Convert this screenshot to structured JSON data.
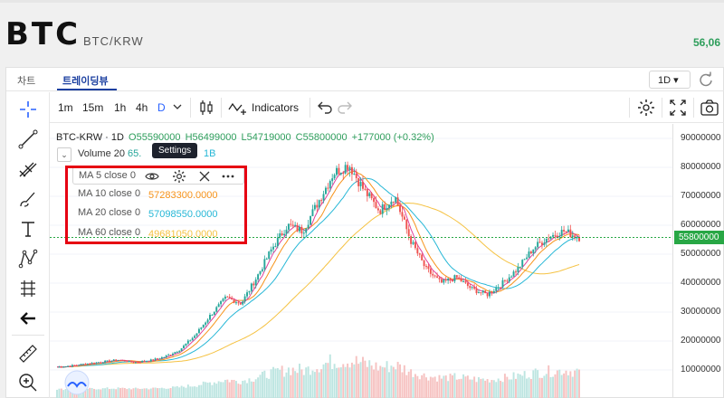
{
  "header": {
    "coin": "BTC",
    "pair": "BTC/KRW",
    "price_partial": "56,06"
  },
  "tabs": [
    {
      "label": "차트"
    },
    {
      "label": "트레이딩뷰"
    }
  ],
  "interval_select": "1D ▾",
  "toolbar": {
    "timeframes": [
      "1m",
      "15m",
      "1h",
      "4h",
      "D"
    ],
    "indicators_label": "Indicators"
  },
  "legend": {
    "symbol": "BTC-KRW · 1D",
    "open": "O55590000",
    "high": "H56499000",
    "low": "L54719000",
    "close": "C55800000",
    "change": "+177000 (+0.32%)",
    "volume_label": "Volume 20",
    "volume_value_partial": "65.",
    "volume_value_end": "1B"
  },
  "ma": [
    {
      "label": "MA 5 close 0",
      "value": "",
      "color": "#e0409a"
    },
    {
      "label": "MA 10 close 0",
      "value": "57283300.0000",
      "color": "#f7931a"
    },
    {
      "label": "MA 20 close 0",
      "value": "57098550.0000",
      "color": "#26b7d6"
    },
    {
      "label": "MA 60 close 0",
      "value": "49681050.0000",
      "color": "#f5c242"
    }
  ],
  "tooltip": "Settings",
  "yaxis": {
    "ticks": [
      "90000000",
      "80000000",
      "70000000",
      "60000000",
      "50000000",
      "40000000",
      "30000000",
      "20000000",
      "10000000"
    ],
    "last_price": "55800000"
  },
  "chart_data": {
    "type": "line",
    "series": [
      {
        "name": "BTC-KRW",
        "values": [
          11000000,
          11500000,
          12200000,
          12800000,
          13500000,
          12600000,
          13200000,
          14500000,
          17000000,
          22000000,
          29000000,
          35000000,
          33000000,
          42000000,
          52000000,
          60000000,
          58000000,
          68000000,
          78000000,
          81000000,
          72000000,
          65000000,
          70000000,
          55000000,
          45000000,
          40000000,
          42000000,
          38000000,
          36000000,
          40000000,
          45000000,
          52000000,
          56000000,
          58000000,
          55800000
        ]
      }
    ],
    "ylim": [
      0,
      95000000
    ]
  },
  "colors": {
    "accent": "#2962ff",
    "up": "#26a69a",
    "down": "#ef5350",
    "highlight": "#e60012"
  }
}
